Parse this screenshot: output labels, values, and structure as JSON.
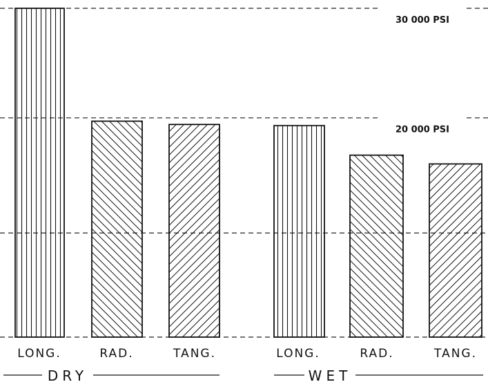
{
  "chart_data": {
    "type": "bar",
    "title": "",
    "xlabel": "",
    "ylabel": "",
    "ylim": [
      0,
      31500
    ],
    "grid": "dashed reference lines",
    "reference_lines": [
      {
        "value": 30000,
        "label": "30 000 PSI"
      },
      {
        "value": 20000,
        "label": "20 000 PSI"
      },
      {
        "value": 9500,
        "label": ""
      },
      {
        "value": 0,
        "label": ""
      }
    ],
    "groups": [
      {
        "label": "DRY",
        "bars": [
          {
            "category": "LONG.",
            "value": 30000,
            "hatch": "vertical"
          },
          {
            "category": "RAD.",
            "value": 19700,
            "hatch": "backslash"
          },
          {
            "category": "TANG.",
            "value": 19400,
            "hatch": "slash"
          }
        ]
      },
      {
        "label": "WET",
        "bars": [
          {
            "category": "LONG.",
            "value": 19300,
            "hatch": "vertical"
          },
          {
            "category": "RAD.",
            "value": 16600,
            "hatch": "backslash"
          },
          {
            "category": "TANG.",
            "value": 15800,
            "hatch": "slash"
          }
        ]
      }
    ]
  }
}
